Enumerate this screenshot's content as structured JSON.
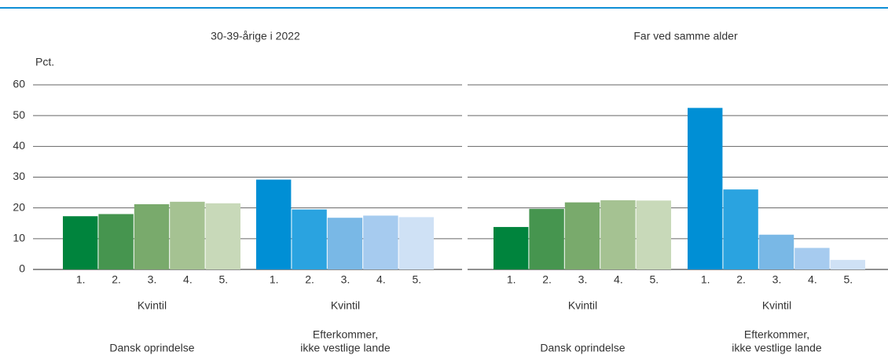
{
  "chart_data": [
    {
      "type": "bar",
      "title": "30-39-årige i 2022",
      "ylabel": "Pct.",
      "ylim": [
        0,
        60
      ],
      "yticks": [
        0,
        10,
        20,
        30,
        40,
        50,
        60
      ],
      "grid": true,
      "groups": [
        {
          "name_lines": [
            "Dansk oprindelse"
          ],
          "axis_label": "Kvintil",
          "categories": [
            "1.",
            "2.",
            "3.",
            "4.",
            "5."
          ],
          "colors": [
            "#00843d",
            "#46954f",
            "#79aa6c",
            "#a5c292",
            "#c8d9b9"
          ],
          "values": [
            17.3,
            18,
            21.2,
            22,
            21.5
          ]
        },
        {
          "name_lines": [
            "Efterkommer,",
            "ikke vestlige lande"
          ],
          "axis_label": "Kvintil",
          "categories": [
            "1.",
            "2.",
            "3.",
            "4.",
            "5."
          ],
          "colors": [
            "#008fd5",
            "#2aa3e0",
            "#79b8e6",
            "#a6cbef",
            "#cfe1f5"
          ],
          "values": [
            29.2,
            19.5,
            16.8,
            17.5,
            17
          ]
        }
      ]
    },
    {
      "type": "bar",
      "title": "Far ved samme alder",
      "ylim": [
        0,
        60
      ],
      "yticks": [
        0,
        10,
        20,
        30,
        40,
        50,
        60
      ],
      "grid": true,
      "groups": [
        {
          "name_lines": [
            "Dansk oprindelse"
          ],
          "axis_label": "Kvintil",
          "categories": [
            "1.",
            "2.",
            "3.",
            "4.",
            "5."
          ],
          "colors": [
            "#00843d",
            "#46954f",
            "#79aa6c",
            "#a5c292",
            "#c8d9b9"
          ],
          "values": [
            13.8,
            19.7,
            21.8,
            22.5,
            22.4
          ]
        },
        {
          "name_lines": [
            "Efterkommer,",
            "ikke vestlige lande"
          ],
          "axis_label": "Kvintil",
          "categories": [
            "1.",
            "2.",
            "3.",
            "4.",
            "5."
          ],
          "colors": [
            "#008fd5",
            "#2aa3e0",
            "#79b8e6",
            "#a6cbef",
            "#cfe1f5"
          ],
          "values": [
            52.5,
            26,
            11.3,
            7,
            3.1
          ]
        }
      ]
    }
  ]
}
